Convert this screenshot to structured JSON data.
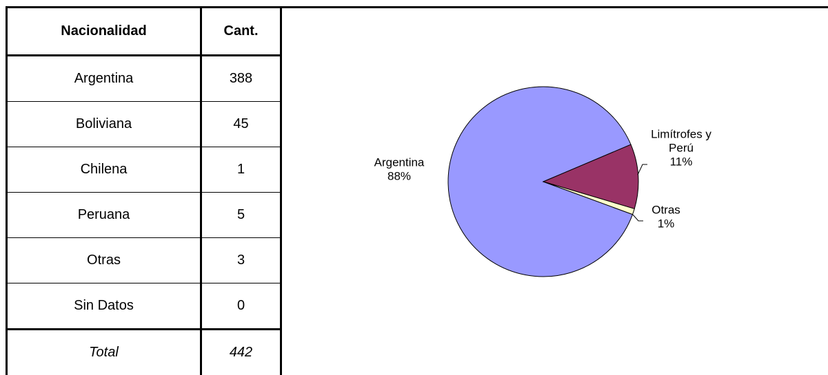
{
  "table": {
    "headers": [
      "Nacionalidad",
      "Cant."
    ],
    "rows": [
      {
        "name": "Argentina",
        "count": "388"
      },
      {
        "name": "Boliviana",
        "count": "45"
      },
      {
        "name": "Chilena",
        "count": "1"
      },
      {
        "name": "Peruana",
        "count": "5"
      },
      {
        "name": "Otras",
        "count": "3"
      },
      {
        "name": "Sin Datos",
        "count": "0"
      }
    ],
    "total": {
      "name": "Total",
      "count": "442"
    }
  },
  "chart_data": {
    "type": "pie",
    "slices": [
      {
        "name": "Argentina",
        "name_lines": [
          "Argentina"
        ],
        "value": 88,
        "label": "88%",
        "color": "#9999ff"
      },
      {
        "name": "Limítrofes y Perú",
        "name_lines": [
          "Limítrofes y",
          "Perú"
        ],
        "value": 11,
        "label": "11%",
        "color": "#993366"
      },
      {
        "name": "Otras",
        "name_lines": [
          "Otras"
        ],
        "value": 1,
        "label": "1%",
        "color": "#ffffcc"
      }
    ],
    "start_angle_deg": -23,
    "direction": "clockwise"
  }
}
